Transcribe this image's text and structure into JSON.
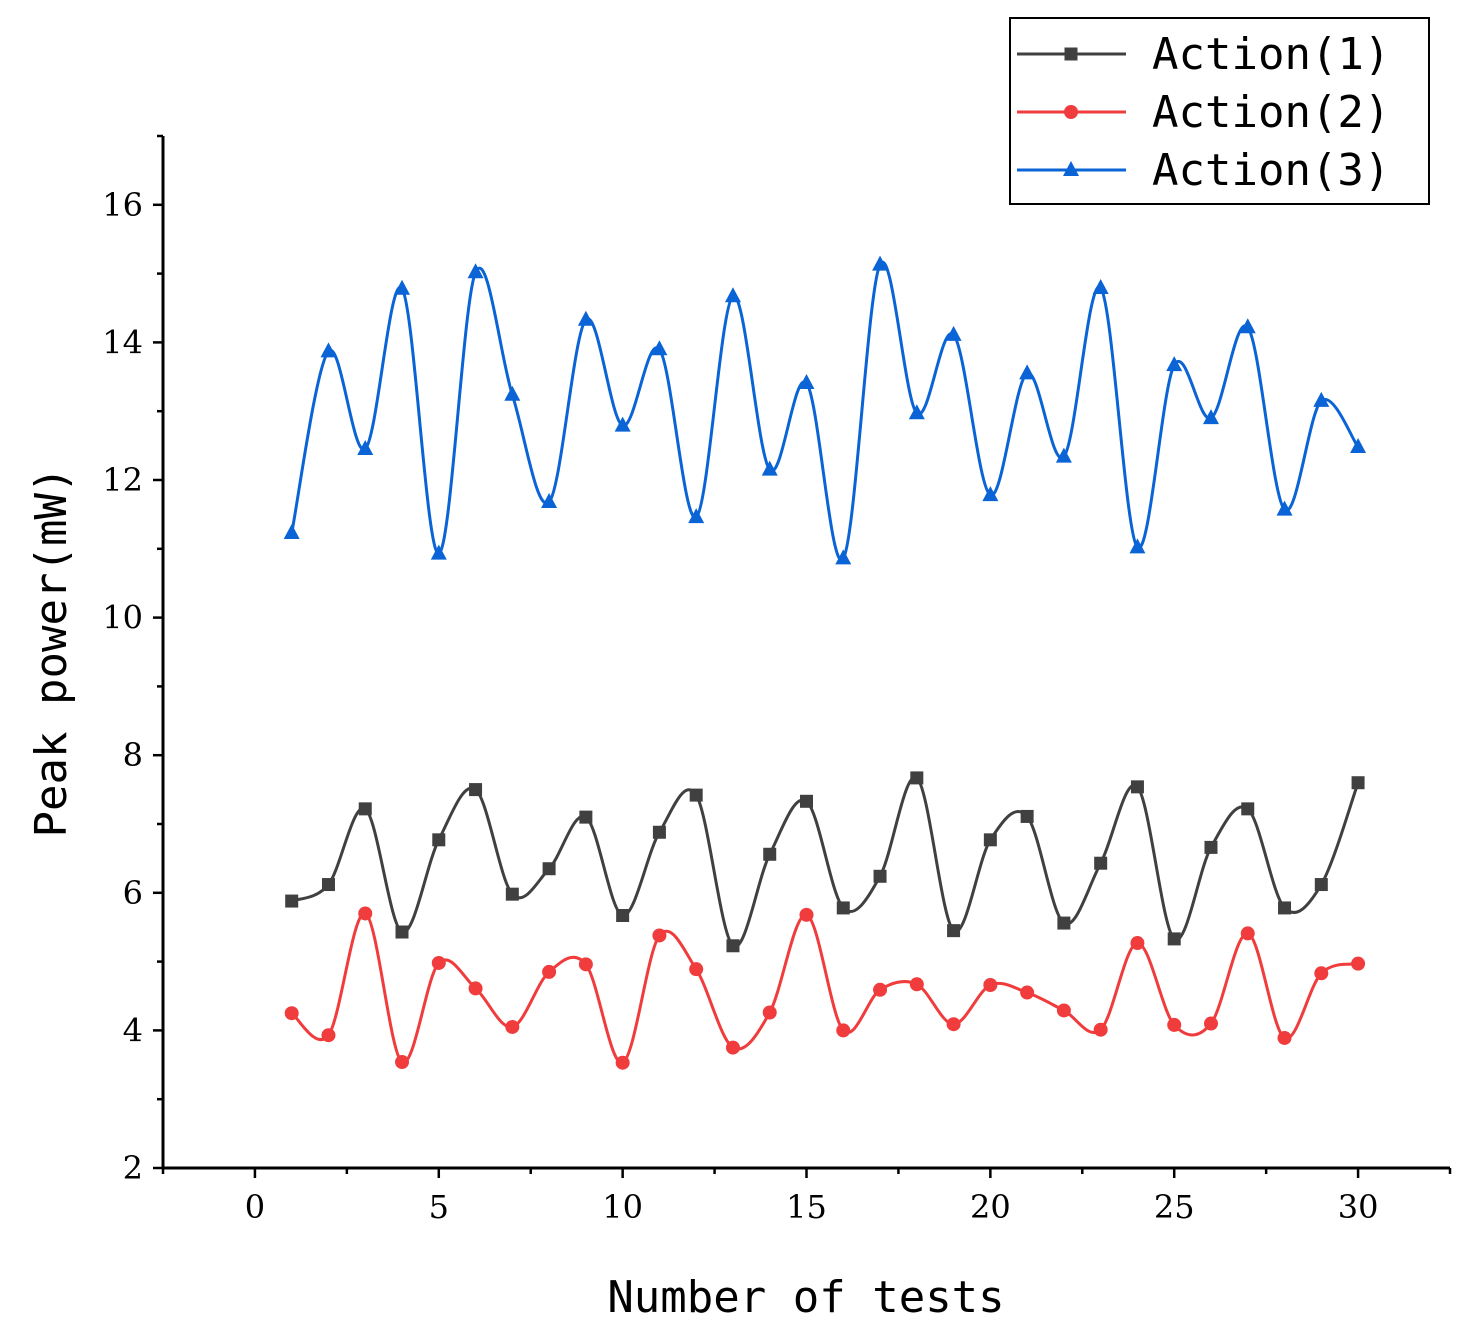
{
  "chart_data": {
    "type": "line",
    "title": "",
    "xlabel": "Number of tests",
    "ylabel": "Peak power(mW)",
    "xlim": [
      -2.5,
      32.5
    ],
    "ylim": [
      2,
      17
    ],
    "xticks": [
      0,
      5,
      10,
      15,
      20,
      25,
      30
    ],
    "yticks": [
      2,
      4,
      6,
      8,
      10,
      12,
      14,
      16
    ],
    "grid": false,
    "legend_position": "top-right",
    "x": [
      1,
      2,
      3,
      4,
      5,
      6,
      7,
      8,
      9,
      10,
      11,
      12,
      13,
      14,
      15,
      16,
      17,
      18,
      19,
      20,
      21,
      22,
      23,
      24,
      25,
      26,
      27,
      28,
      29,
      30
    ],
    "series": [
      {
        "name": "Action(1)",
        "color": "#404040",
        "marker": "square",
        "values": [
          5.88,
          6.12,
          7.22,
          5.43,
          6.77,
          7.5,
          5.98,
          6.35,
          7.1,
          5.67,
          6.88,
          7.42,
          5.23,
          6.56,
          7.33,
          5.78,
          6.24,
          7.67,
          5.45,
          6.77,
          7.11,
          5.56,
          6.43,
          7.54,
          5.33,
          6.66,
          7.22,
          5.78,
          6.12,
          7.6
        ]
      },
      {
        "name": "Action(2)",
        "color": "#f03c3c",
        "marker": "circle",
        "values": [
          4.25,
          3.93,
          5.7,
          3.54,
          4.98,
          4.61,
          4.05,
          4.85,
          4.96,
          3.53,
          5.38,
          4.89,
          3.75,
          4.26,
          5.68,
          4.0,
          4.59,
          4.67,
          4.09,
          4.66,
          4.55,
          4.29,
          4.01,
          5.27,
          4.08,
          4.1,
          5.41,
          3.89,
          4.83,
          4.97
        ]
      },
      {
        "name": "Action(3)",
        "color": "#0a64d6",
        "marker": "triangle",
        "values": [
          11.23,
          13.87,
          12.45,
          14.78,
          10.93,
          15.02,
          13.24,
          11.68,
          14.33,
          12.79,
          13.9,
          11.46,
          14.67,
          12.15,
          13.41,
          10.86,
          15.13,
          12.97,
          14.11,
          11.78,
          13.55,
          12.34,
          14.79,
          11.02,
          13.67,
          12.9,
          14.22,
          11.57,
          13.15,
          12.48
        ]
      }
    ]
  }
}
